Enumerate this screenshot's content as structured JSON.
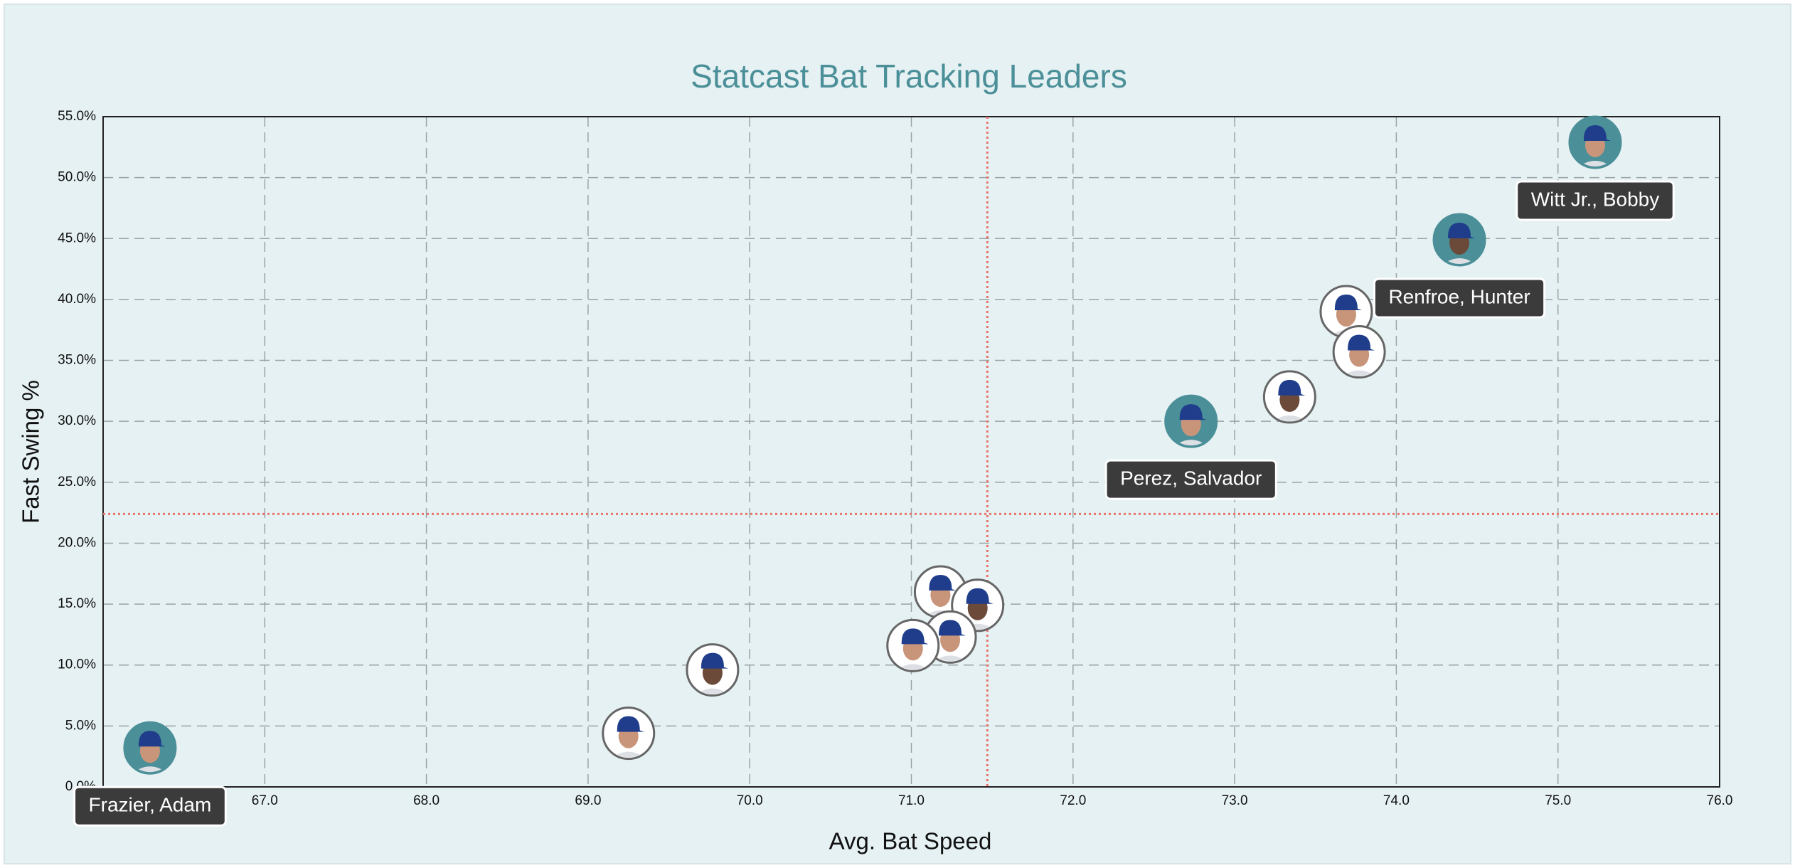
{
  "chart_data": {
    "type": "scatter",
    "title": "Statcast Bat Tracking Leaders",
    "x_label": "Avg. Bat Speed",
    "y_label": "Fast Swing %",
    "x": [
      75.23,
      74.39,
      73.69,
      73.77,
      73.34,
      72.73,
      71.18,
      71.41,
      71.24,
      71.01,
      69.77,
      69.25,
      66.29
    ],
    "values": [
      52.9,
      44.9,
      39.0,
      35.7,
      32.0,
      30.0,
      16.0,
      14.9,
      12.3,
      11.6,
      9.6,
      4.4,
      3.2
    ],
    "labels": [
      "Witt Jr., Bobby",
      "Renfroe, Hunter",
      null,
      null,
      null,
      "Perez, Salvador",
      null,
      null,
      null,
      null,
      null,
      null,
      "Frazier, Adam"
    ],
    "highlight_color": "#4b8f98",
    "color": "#ffffff",
    "xlim": [
      66,
      76
    ],
    "xticks": [
      {
        "value": 67,
        "label": "67.0"
      },
      {
        "value": 68,
        "label": "68.0"
      },
      {
        "value": 69,
        "label": "69.0"
      },
      {
        "value": 70,
        "label": "70.0"
      },
      {
        "value": 71,
        "label": "71.0"
      },
      {
        "value": 72,
        "label": "72.0"
      },
      {
        "value": 73,
        "label": "73.0"
      },
      {
        "value": 74,
        "label": "74.0"
      },
      {
        "value": 75,
        "label": "75.0"
      },
      {
        "value": 76,
        "label": "76.0"
      }
    ],
    "ylim": [
      0,
      55
    ],
    "yticks": [
      {
        "value": 0,
        "label": "0.0%"
      },
      {
        "value": 5,
        "label": "5.0%"
      },
      {
        "value": 10,
        "label": "10.0%"
      },
      {
        "value": 15,
        "label": "15.0%"
      },
      {
        "value": 20,
        "label": "20.0%"
      },
      {
        "value": 25,
        "label": "25.0%"
      },
      {
        "value": 30,
        "label": "30.0%"
      },
      {
        "value": 35,
        "label": "35.0%"
      },
      {
        "value": 40,
        "label": "40.0%"
      },
      {
        "value": 45,
        "label": "45.0%"
      },
      {
        "value": 50,
        "label": "50.0%"
      },
      {
        "value": 55,
        "label": "55.0%"
      }
    ],
    "ref_x": 71.47,
    "ref_y": 22.4,
    "ref_color": "#e8736b",
    "grid": true
  }
}
